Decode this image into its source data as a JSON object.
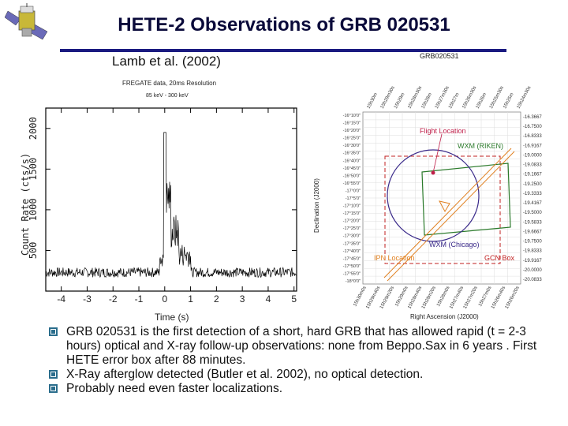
{
  "slide": {
    "title": "HETE-2 Observations of GRB 020531",
    "citation": "Lamb et al. (2002)"
  },
  "lightcurve": {
    "header1": "FREGATE data, 20ms Resolution",
    "header2": "85 keV - 300 keV",
    "ylabel": "Count Rate (cts/s)",
    "xlabel": "Time (s)",
    "y_ticks": [
      "2000",
      "1500",
      "1000",
      "500"
    ],
    "x_ticks": [
      "-4",
      "-3",
      "-2",
      "-1",
      "0",
      "1",
      "2",
      "3",
      "4",
      "5"
    ]
  },
  "skymap": {
    "label": "GRB020531",
    "ylabel": "Declination (J2000)",
    "xlabel": "Right Ascension (J2000)",
    "dec_left_ticks": [
      "-16°10'0\"",
      "-16°15'0\"",
      "-16°20'0\"",
      "-16°25'0\"",
      "-16°30'0\"",
      "-16°35'0\"",
      "-16°40'0\"",
      "-16°45'0\"",
      "-16°50'0\"",
      "-16°55'0\"",
      "-17°0'0\"",
      "-17°5'0\"",
      "-17°10'0\"",
      "-17°15'0\"",
      "-17°20'0\"",
      "-17°25'0\"",
      "-17°30'0\"",
      "-17°35'0\"",
      "-17°40'0\"",
      "-17°45'0\"",
      "-17°50'0\"",
      "-17°55'0\"",
      "-18°0'0\""
    ],
    "dec_right_ticks": [
      "-16.3667",
      "-16.7500",
      "-16.8333",
      "-16.9167",
      "-19.0000",
      "-19.0833",
      "-19.1667",
      "-19.2500",
      "-19.3333",
      "-19.4167",
      "-19.5000",
      "-19.5833",
      "-19.6667",
      "-19.7500",
      "-19.8333",
      "-19.9167",
      "-20.0000",
      "-20.0833"
    ],
    "ra_top_ticks": [
      "15h30m",
      "15h29m30s",
      "15h29m",
      "15h28m30s",
      "15h28m",
      "15h27m30s",
      "15h27m",
      "15h26m30s",
      "15h26m",
      "15h25m30s",
      "15h25m",
      "15h24m30s"
    ],
    "ra_bottom_ticks": [
      "15h30m0s",
      "15h29m40s",
      "15h29m20s",
      "15h29m0s",
      "15h28m40s",
      "15h28m20s",
      "15h28m0s",
      "15h27m40s",
      "15h27m20s",
      "15h27m0s",
      "15h26m40s",
      "15h26m20s"
    ],
    "flight_location": "Flight Location",
    "wxm_riken": "WXM (RIKEN)",
    "wxm_chicago": "WXM (Chicago)",
    "ipn_location": "IPN Location",
    "gcn_box": "GCN Box"
  },
  "bullets": [
    "GRB 020531 is the first detection of a short, hard GRB that  has allowed rapid (t = 2-3 hours) optical and X-ray follow-up observations: none from Beppo.Sax in 6 years . First HETE error box after 88 minutes.",
    "X-Ray afterglow detected (Butler et al. 2002), no optical detection.",
    "Probably need even faster localizations."
  ],
  "colors": {
    "title": "#0a0a3a",
    "rule": "#1a1a80",
    "flight": "#c0204a",
    "wxm_riken": "#2a7a2a",
    "wxm_chicago": "#3a2a8a",
    "ipn": "#e08020",
    "gcn": "#c02020",
    "bullet": "#2a6d8c"
  }
}
